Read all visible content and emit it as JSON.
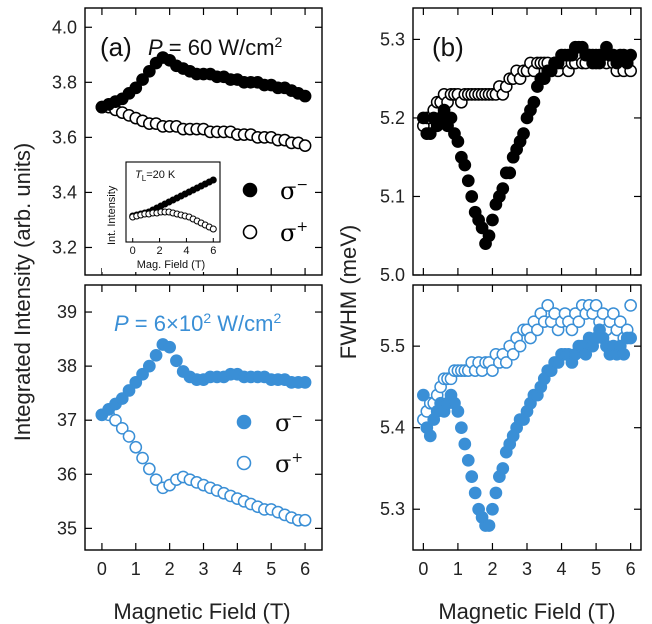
{
  "colors": {
    "black": "#000000",
    "blue": "#3a8fd6"
  },
  "labels": {
    "xlabel": "Magnetic Field (T)",
    "ylabel_a": "Integrated Intensity (arb. units)",
    "ylabel_b": "FWHM (meV)",
    "panel_a": "(a)",
    "panel_b": "(b)",
    "power_top_sym": "P",
    "power_top_rest": " = 60 W/cm",
    "power_top_exp": "2",
    "power_bot_sym": "P",
    "power_bot_rest": " = 6×10",
    "power_bot_exp1": "2",
    "power_bot_unit": " W/cm",
    "power_bot_exp2": "2",
    "sigma": "σ",
    "minus": "−",
    "plus": "+",
    "inset_title_sym": "T",
    "inset_title_sub": "L",
    "inset_title_rest": "=20 K",
    "inset_ylabel": "Int. Intensity",
    "inset_xlabel": "Mag. Field (T)"
  },
  "chart_data": [
    {
      "id": "a-top",
      "type": "scatter",
      "xlim": [
        -0.5,
        6.5
      ],
      "ylim": [
        3.1,
        4.07
      ],
      "yticks": [
        3.2,
        3.4,
        3.6,
        3.8,
        4.0
      ],
      "ytick_labels": [
        "3.2",
        "3.4",
        "3.6",
        "3.8",
        "4.0"
      ],
      "series": [
        {
          "name": "σ−",
          "filled": true,
          "color": "#000000",
          "x": [
            0,
            0.2,
            0.4,
            0.6,
            0.8,
            1.0,
            1.2,
            1.4,
            1.6,
            1.8,
            2.0,
            2.2,
            2.4,
            2.6,
            2.8,
            3.0,
            3.2,
            3.4,
            3.6,
            3.8,
            4.0,
            4.2,
            4.4,
            4.6,
            4.8,
            5.0,
            5.2,
            5.4,
            5.6,
            5.8,
            6.0
          ],
          "y": [
            3.71,
            3.72,
            3.73,
            3.74,
            3.76,
            3.78,
            3.81,
            3.84,
            3.87,
            3.89,
            3.88,
            3.86,
            3.85,
            3.84,
            3.83,
            3.83,
            3.83,
            3.82,
            3.82,
            3.81,
            3.81,
            3.8,
            3.8,
            3.8,
            3.79,
            3.79,
            3.78,
            3.78,
            3.77,
            3.76,
            3.75
          ]
        },
        {
          "name": "σ+",
          "filled": false,
          "color": "#000000",
          "x": [
            0,
            0.2,
            0.4,
            0.6,
            0.8,
            1.0,
            1.2,
            1.4,
            1.6,
            1.8,
            2.0,
            2.2,
            2.4,
            2.6,
            2.8,
            3.0,
            3.2,
            3.4,
            3.6,
            3.8,
            4.0,
            4.2,
            4.4,
            4.6,
            4.8,
            5.0,
            5.2,
            5.4,
            5.6,
            5.8,
            6.0
          ],
          "y": [
            3.71,
            3.71,
            3.7,
            3.69,
            3.68,
            3.67,
            3.66,
            3.65,
            3.65,
            3.64,
            3.64,
            3.64,
            3.63,
            3.63,
            3.63,
            3.63,
            3.62,
            3.62,
            3.62,
            3.62,
            3.61,
            3.61,
            3.61,
            3.6,
            3.6,
            3.6,
            3.59,
            3.59,
            3.58,
            3.58,
            3.57
          ]
        }
      ],
      "inset": {
        "xlim": [
          -0.5,
          6.5
        ],
        "ylim": [
          3.2,
          4.0
        ],
        "xticks": [
          0,
          2,
          4,
          6
        ],
        "xtick_labels": [
          "0",
          "2",
          "4",
          "6"
        ],
        "series": [
          {
            "filled": true,
            "x": [
              0,
              0.3,
              0.6,
              0.9,
              1.2,
              1.5,
              1.8,
              2.1,
              2.4,
              2.7,
              3.0,
              3.3,
              3.6,
              3.9,
              4.2,
              4.5,
              4.8,
              5.1,
              5.4,
              5.7,
              6.0
            ],
            "y": [
              3.46,
              3.47,
              3.48,
              3.49,
              3.5,
              3.52,
              3.54,
              3.56,
              3.58,
              3.6,
              3.62,
              3.64,
              3.66,
              3.68,
              3.7,
              3.72,
              3.74,
              3.76,
              3.78,
              3.8,
              3.82
            ]
          },
          {
            "filled": false,
            "x": [
              0,
              0.3,
              0.6,
              0.9,
              1.2,
              1.5,
              1.8,
              2.1,
              2.4,
              2.7,
              3.0,
              3.3,
              3.6,
              3.9,
              4.2,
              4.5,
              4.8,
              5.1,
              5.4,
              5.7,
              6.0
            ],
            "y": [
              3.45,
              3.46,
              3.47,
              3.48,
              3.48,
              3.49,
              3.49,
              3.5,
              3.5,
              3.5,
              3.49,
              3.48,
              3.47,
              3.46,
              3.45,
              3.43,
              3.41,
              3.39,
              3.37,
              3.35,
              3.33
            ]
          }
        ]
      }
    },
    {
      "id": "a-bottom",
      "type": "scatter",
      "xlim": [
        -0.5,
        6.5
      ],
      "ylim": [
        34.6,
        39.5
      ],
      "xticks": [
        0,
        1,
        2,
        3,
        4,
        5,
        6
      ],
      "xtick_labels": [
        "0",
        "1",
        "2",
        "3",
        "4",
        "5",
        "6"
      ],
      "yticks": [
        35,
        36,
        37,
        38,
        39
      ],
      "ytick_labels": [
        "35",
        "36",
        "37",
        "38",
        "39"
      ],
      "series": [
        {
          "name": "σ−",
          "filled": true,
          "color": "#3a8fd6",
          "x": [
            0,
            0.2,
            0.4,
            0.6,
            0.8,
            1.0,
            1.2,
            1.4,
            1.6,
            1.8,
            2.0,
            2.2,
            2.4,
            2.6,
            2.8,
            3.0,
            3.2,
            3.4,
            3.6,
            3.8,
            4.0,
            4.2,
            4.4,
            4.6,
            4.8,
            5.0,
            5.2,
            5.4,
            5.6,
            5.8,
            6.0
          ],
          "y": [
            37.1,
            37.2,
            37.3,
            37.4,
            37.55,
            37.7,
            37.85,
            38.0,
            38.2,
            38.4,
            38.35,
            38.1,
            37.9,
            37.8,
            37.75,
            37.75,
            37.8,
            37.8,
            37.8,
            37.85,
            37.85,
            37.8,
            37.8,
            37.8,
            37.8,
            37.75,
            37.75,
            37.75,
            37.7,
            37.7,
            37.7
          ]
        },
        {
          "name": "σ+",
          "filled": false,
          "color": "#3a8fd6",
          "x": [
            0,
            0.2,
            0.4,
            0.6,
            0.8,
            1.0,
            1.2,
            1.4,
            1.6,
            1.8,
            2.0,
            2.2,
            2.4,
            2.6,
            2.8,
            3.0,
            3.2,
            3.4,
            3.6,
            3.8,
            4.0,
            4.2,
            4.4,
            4.6,
            4.8,
            5.0,
            5.2,
            5.4,
            5.6,
            5.8,
            6.0
          ],
          "y": [
            37.1,
            37.1,
            37.0,
            36.85,
            36.7,
            36.5,
            36.3,
            36.1,
            35.9,
            35.75,
            35.8,
            35.9,
            35.95,
            35.9,
            35.85,
            35.8,
            35.75,
            35.7,
            35.65,
            35.6,
            35.55,
            35.5,
            35.45,
            35.4,
            35.35,
            35.35,
            35.3,
            35.25,
            35.2,
            35.15,
            35.15
          ]
        }
      ]
    },
    {
      "id": "b-top",
      "type": "scatter",
      "xlim": [
        -0.3,
        6.3
      ],
      "ylim": [
        5.0,
        5.34
      ],
      "yticks": [
        5.0,
        5.1,
        5.2,
        5.3
      ],
      "ytick_labels": [
        "5.0",
        "5.1",
        "5.2",
        "5.3"
      ],
      "series": [
        {
          "name": "σ−",
          "filled": true,
          "color": "#000000",
          "x": [
            0,
            0.1,
            0.2,
            0.3,
            0.4,
            0.5,
            0.6,
            0.7,
            0.8,
            0.9,
            1.0,
            1.1,
            1.2,
            1.3,
            1.4,
            1.5,
            1.6,
            1.7,
            1.8,
            1.9,
            2.0,
            2.1,
            2.2,
            2.3,
            2.4,
            2.5,
            2.6,
            2.7,
            2.8,
            2.9,
            3.0,
            3.1,
            3.2,
            3.3,
            3.4,
            3.5,
            3.6,
            3.7,
            3.8,
            3.9,
            4.0,
            4.1,
            4.2,
            4.3,
            4.4,
            4.5,
            4.6,
            4.7,
            4.8,
            4.9,
            5.0,
            5.1,
            5.2,
            5.3,
            5.4,
            5.5,
            5.6,
            5.7,
            5.8,
            5.9,
            6.0
          ],
          "y": [
            5.2,
            5.18,
            5.18,
            5.2,
            5.19,
            5.2,
            5.21,
            5.19,
            5.2,
            5.18,
            5.17,
            5.15,
            5.14,
            5.12,
            5.1,
            5.08,
            5.07,
            5.06,
            5.04,
            5.05,
            5.07,
            5.09,
            5.1,
            5.11,
            5.13,
            5.13,
            5.15,
            5.16,
            5.17,
            5.18,
            5.2,
            5.21,
            5.22,
            5.24,
            5.25,
            5.25,
            5.26,
            5.26,
            5.27,
            5.27,
            5.28,
            5.28,
            5.28,
            5.28,
            5.29,
            5.29,
            5.29,
            5.28,
            5.28,
            5.27,
            5.28,
            5.27,
            5.28,
            5.29,
            5.28,
            5.28,
            5.27,
            5.28,
            5.28,
            5.27,
            5.28
          ]
        },
        {
          "name": "σ+",
          "filled": false,
          "color": "#000000",
          "x": [
            0,
            0.1,
            0.2,
            0.3,
            0.4,
            0.5,
            0.6,
            0.7,
            0.8,
            0.9,
            1.0,
            1.1,
            1.2,
            1.3,
            1.4,
            1.5,
            1.6,
            1.7,
            1.8,
            1.9,
            2.0,
            2.1,
            2.2,
            2.3,
            2.4,
            2.5,
            2.6,
            2.7,
            2.8,
            2.9,
            3.0,
            3.1,
            3.2,
            3.3,
            3.4,
            3.5,
            3.6,
            3.7,
            3.8,
            3.9,
            4.0,
            4.1,
            4.2,
            4.3,
            4.4,
            4.5,
            4.6,
            4.7,
            4.8,
            4.9,
            5.0,
            5.1,
            5.2,
            5.3,
            5.4,
            5.5,
            5.6,
            5.7,
            5.8,
            5.9,
            6.0
          ],
          "y": [
            5.19,
            5.2,
            5.2,
            5.21,
            5.22,
            5.22,
            5.23,
            5.22,
            5.23,
            5.23,
            5.23,
            5.22,
            5.23,
            5.23,
            5.23,
            5.23,
            5.23,
            5.23,
            5.23,
            5.23,
            5.23,
            5.23,
            5.24,
            5.23,
            5.24,
            5.25,
            5.25,
            5.26,
            5.25,
            5.26,
            5.26,
            5.27,
            5.26,
            5.27,
            5.27,
            5.27,
            5.27,
            5.26,
            5.27,
            5.26,
            5.27,
            5.27,
            5.26,
            5.27,
            5.27,
            5.28,
            5.27,
            5.27,
            5.28,
            5.28,
            5.27,
            5.28,
            5.28,
            5.27,
            5.28,
            5.27,
            5.26,
            5.27,
            5.26,
            5.27,
            5.26
          ]
        }
      ]
    },
    {
      "id": "b-bottom",
      "type": "scatter",
      "xlim": [
        -0.3,
        6.3
      ],
      "ylim": [
        5.25,
        5.575
      ],
      "xticks": [
        0,
        1,
        2,
        3,
        4,
        5,
        6
      ],
      "xtick_labels": [
        "0",
        "1",
        "2",
        "3",
        "4",
        "5",
        "6"
      ],
      "yticks": [
        5.3,
        5.4,
        5.5
      ],
      "ytick_labels": [
        "5.3",
        "5.4",
        "5.5"
      ],
      "series": [
        {
          "name": "σ−",
          "filled": true,
          "color": "#3a8fd6",
          "x": [
            0,
            0.1,
            0.2,
            0.3,
            0.4,
            0.5,
            0.6,
            0.7,
            0.8,
            0.9,
            1.0,
            1.1,
            1.2,
            1.3,
            1.4,
            1.5,
            1.6,
            1.7,
            1.8,
            1.9,
            2.0,
            2.1,
            2.2,
            2.3,
            2.4,
            2.5,
            2.6,
            2.7,
            2.8,
            2.9,
            3.0,
            3.1,
            3.2,
            3.3,
            3.4,
            3.5,
            3.6,
            3.7,
            3.8,
            3.9,
            4.0,
            4.1,
            4.2,
            4.3,
            4.4,
            4.5,
            4.6,
            4.7,
            4.8,
            4.9,
            5.0,
            5.1,
            5.2,
            5.3,
            5.4,
            5.5,
            5.6,
            5.7,
            5.8,
            5.9,
            6.0
          ],
          "y": [
            5.44,
            5.4,
            5.39,
            5.41,
            5.42,
            5.43,
            5.42,
            5.43,
            5.44,
            5.43,
            5.42,
            5.4,
            5.38,
            5.36,
            5.34,
            5.32,
            5.3,
            5.29,
            5.28,
            5.28,
            5.3,
            5.32,
            5.34,
            5.35,
            5.37,
            5.38,
            5.39,
            5.4,
            5.41,
            5.41,
            5.42,
            5.43,
            5.44,
            5.44,
            5.45,
            5.46,
            5.47,
            5.47,
            5.48,
            5.48,
            5.49,
            5.49,
            5.49,
            5.48,
            5.49,
            5.5,
            5.5,
            5.49,
            5.51,
            5.5,
            5.51,
            5.52,
            5.51,
            5.5,
            5.49,
            5.5,
            5.49,
            5.5,
            5.49,
            5.51,
            5.51
          ]
        },
        {
          "name": "σ+",
          "filled": false,
          "color": "#3a8fd6",
          "x": [
            0,
            0.1,
            0.2,
            0.3,
            0.4,
            0.5,
            0.6,
            0.7,
            0.8,
            0.9,
            1.0,
            1.1,
            1.2,
            1.3,
            1.4,
            1.5,
            1.6,
            1.7,
            1.8,
            1.9,
            2.0,
            2.1,
            2.2,
            2.3,
            2.4,
            2.5,
            2.6,
            2.7,
            2.8,
            2.9,
            3.0,
            3.1,
            3.2,
            3.3,
            3.4,
            3.5,
            3.6,
            3.7,
            3.8,
            3.9,
            4.0,
            4.1,
            4.2,
            4.3,
            4.4,
            4.5,
            4.6,
            4.7,
            4.8,
            4.9,
            5.0,
            5.1,
            5.2,
            5.3,
            5.4,
            5.5,
            5.6,
            5.7,
            5.8,
            5.9,
            6.0
          ],
          "y": [
            5.41,
            5.42,
            5.43,
            5.43,
            5.44,
            5.45,
            5.46,
            5.46,
            5.46,
            5.47,
            5.47,
            5.47,
            5.47,
            5.47,
            5.48,
            5.47,
            5.48,
            5.47,
            5.48,
            5.48,
            5.47,
            5.49,
            5.48,
            5.49,
            5.48,
            5.5,
            5.49,
            5.51,
            5.5,
            5.52,
            5.52,
            5.51,
            5.53,
            5.52,
            5.54,
            5.53,
            5.55,
            5.53,
            5.54,
            5.52,
            5.53,
            5.54,
            5.53,
            5.52,
            5.54,
            5.53,
            5.55,
            5.54,
            5.55,
            5.54,
            5.55,
            5.53,
            5.54,
            5.52,
            5.53,
            5.54,
            5.52,
            5.53,
            5.51,
            5.52,
            5.55
          ]
        }
      ]
    }
  ]
}
